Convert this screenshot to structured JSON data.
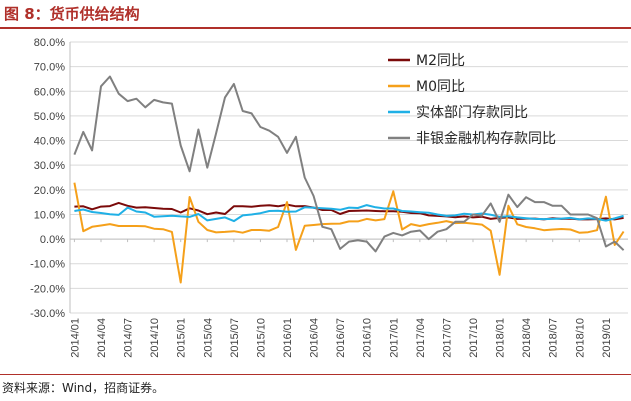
{
  "figure": {
    "title": "图 8：货币供给结构",
    "source": "资料来源：Wind，招商证券。"
  },
  "chart_data": {
    "type": "line",
    "title": "货币供给结构",
    "xlabel": "",
    "ylabel": "",
    "ylim": [
      -30,
      80
    ],
    "yticks": [
      -30,
      -20,
      -10,
      0,
      10,
      20,
      30,
      40,
      50,
      60,
      70,
      80
    ],
    "ytick_labels": [
      "-30.0%",
      "-20.0%",
      "-10.0%",
      "0.0%",
      "10.0%",
      "20.0%",
      "30.0%",
      "40.0%",
      "50.0%",
      "60.0%",
      "70.0%",
      "80.0%"
    ],
    "x": [
      "2014/01",
      "2014/02",
      "2014/03",
      "2014/04",
      "2014/05",
      "2014/06",
      "2014/07",
      "2014/08",
      "2014/09",
      "2014/10",
      "2014/11",
      "2014/12",
      "2015/01",
      "2015/02",
      "2015/03",
      "2015/04",
      "2015/05",
      "2015/06",
      "2015/07",
      "2015/08",
      "2015/09",
      "2015/10",
      "2015/11",
      "2015/12",
      "2016/01",
      "2016/02",
      "2016/03",
      "2016/04",
      "2016/05",
      "2016/06",
      "2016/07",
      "2016/08",
      "2016/09",
      "2016/10",
      "2016/11",
      "2016/12",
      "2017/01",
      "2017/02",
      "2017/03",
      "2017/04",
      "2017/05",
      "2017/06",
      "2017/07",
      "2017/08",
      "2017/09",
      "2017/10",
      "2017/11",
      "2017/12",
      "2018/01",
      "2018/02",
      "2018/03",
      "2018/04",
      "2018/05",
      "2018/06",
      "2018/07",
      "2018/08",
      "2018/09",
      "2018/10",
      "2018/11",
      "2018/12",
      "2019/01",
      "2019/02",
      "2019/03"
    ],
    "xtick_labels": [
      "2014/01",
      "2014/04",
      "2014/07",
      "2014/10",
      "2015/01",
      "2015/04",
      "2015/07",
      "2015/10",
      "2016/01",
      "2016/04",
      "2016/07",
      "2016/10",
      "2017/01",
      "2017/04",
      "2017/07",
      "2017/10",
      "2018/01",
      "2018/04",
      "2018/07",
      "2018/10",
      "2019/01"
    ],
    "legend_position": "top-right",
    "series": [
      {
        "name": "M2同比",
        "color": "#7b0a0a",
        "values": [
          13.2,
          13.3,
          12.1,
          13.2,
          13.4,
          14.7,
          13.5,
          12.8,
          12.9,
          12.6,
          12.3,
          12.2,
          10.8,
          12.5,
          11.6,
          10.1,
          10.8,
          10.2,
          13.3,
          13.3,
          13.1,
          13.5,
          13.7,
          13.3,
          14.0,
          13.3,
          13.4,
          12.8,
          11.8,
          11.8,
          10.2,
          11.4,
          11.5,
          11.6,
          11.4,
          11.3,
          11.3,
          11.1,
          10.6,
          10.5,
          9.6,
          9.4,
          9.2,
          8.9,
          9.2,
          8.8,
          9.1,
          8.2,
          8.6,
          8.8,
          8.2,
          8.3,
          8.3,
          8.0,
          8.5,
          8.2,
          8.3,
          8.0,
          8.0,
          8.1,
          8.4,
          8.0,
          8.6
        ]
      },
      {
        "name": "M0同比",
        "color": "#f5a01a",
        "values": [
          22.9,
          3.2,
          5.0,
          5.5,
          6.1,
          5.3,
          5.3,
          5.3,
          5.2,
          4.2,
          4.0,
          2.9,
          -17.6,
          17.1,
          7.0,
          3.7,
          2.7,
          2.9,
          3.2,
          2.6,
          3.7,
          3.7,
          3.4,
          4.9,
          15.0,
          -4.4,
          5.4,
          5.7,
          6.1,
          6.2,
          6.3,
          7.2,
          7.2,
          8.2,
          7.6,
          8.1,
          19.4,
          3.9,
          6.1,
          5.3,
          6.1,
          6.6,
          7.3,
          6.5,
          6.6,
          6.3,
          5.9,
          3.4,
          -14.5,
          13.5,
          6.0,
          4.9,
          4.4,
          3.6,
          3.9,
          4.1,
          3.9,
          2.6,
          2.8,
          3.6,
          17.2,
          -2.4,
          3.1
        ]
      },
      {
        "name": "实体部门存款同比",
        "color": "#1fb0e6",
        "values": [
          11.4,
          12.0,
          11.0,
          10.6,
          10.1,
          9.8,
          12.8,
          11.2,
          10.8,
          9.1,
          9.3,
          9.5,
          9.2,
          9.0,
          10.2,
          7.6,
          8.2,
          8.8,
          7.3,
          9.6,
          10.0,
          10.5,
          11.4,
          11.5,
          11.1,
          11.2,
          12.9,
          12.7,
          12.5,
          12.3,
          11.9,
          12.8,
          12.6,
          13.8,
          12.9,
          12.4,
          12.4,
          11.4,
          11.2,
          10.9,
          10.7,
          10.0,
          9.4,
          9.6,
          10.3,
          10.0,
          10.4,
          9.9,
          9.0,
          9.3,
          8.8,
          8.5,
          8.2,
          8.1,
          8.2,
          8.3,
          8.6,
          8.0,
          8.4,
          8.2,
          7.5,
          8.4,
          9.4
        ]
      },
      {
        "name": "非银金融机构存款同比",
        "color": "#808080",
        "values": [
          34.3,
          43.5,
          36.0,
          62.0,
          66.0,
          59.0,
          56.0,
          57.0,
          53.5,
          56.5,
          55.5,
          55.0,
          38.0,
          27.5,
          44.5,
          29.0,
          43.0,
          57.5,
          63.0,
          52.0,
          51.0,
          45.5,
          44.0,
          41.5,
          35.0,
          41.5,
          25.0,
          17.5,
          5.0,
          4.0,
          -4.0,
          -1.0,
          -0.5,
          -1.0,
          -5.0,
          1.0,
          2.5,
          1.5,
          3.0,
          3.5,
          0.0,
          3.0,
          4.0,
          7.0,
          7.0,
          10.0,
          9.5,
          14.5,
          7.0,
          18.0,
          13.0,
          17.0,
          15.0,
          15.0,
          13.5,
          13.5,
          10.0,
          10.0,
          10.0,
          8.5,
          -3.0,
          -1.0,
          -4.5
        ]
      }
    ]
  }
}
